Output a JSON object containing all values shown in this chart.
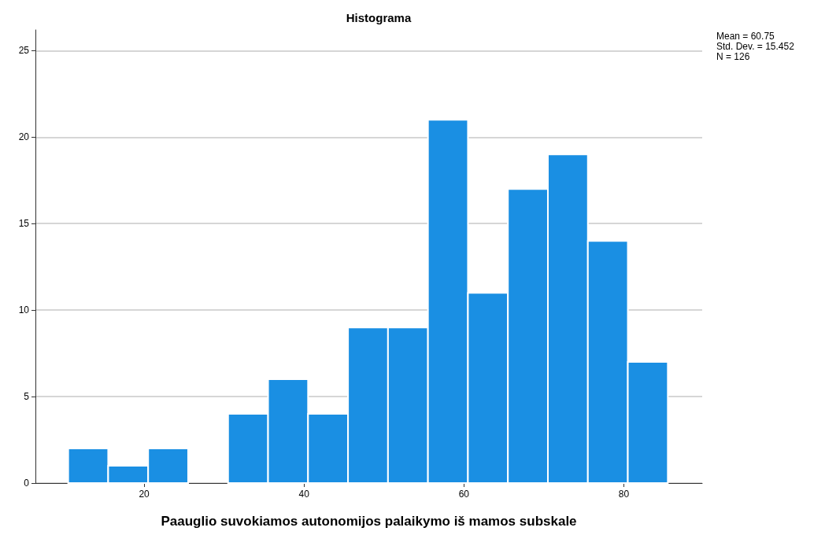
{
  "chart_data": {
    "type": "histogram",
    "title": "Histograma",
    "xlabel": "Paauglio suvokiamos autonomijos palaikymo iš mamos subskale",
    "bins": [
      10.5,
      15.5,
      20.5,
      25.5,
      30.5,
      35.5,
      40.5,
      45.5,
      50.5,
      55.5,
      60.5,
      65.5,
      70.5,
      75.5,
      80.5,
      85.5
    ],
    "values": [
      2,
      1,
      2,
      0,
      4,
      6,
      4,
      9,
      9,
      21,
      11,
      17,
      19,
      14,
      7
    ],
    "color": "#1a8fe3",
    "xlim": [
      6.4,
      89.8
    ],
    "xticks": [
      20,
      40,
      60,
      80
    ],
    "ylim": [
      0,
      26.2
    ],
    "yticks": [
      0,
      5,
      10,
      15,
      20,
      25
    ],
    "grid": "y",
    "annotations": [
      "Mean = 60.75",
      "Std. Dev. = 15.452",
      "N = 126"
    ]
  }
}
